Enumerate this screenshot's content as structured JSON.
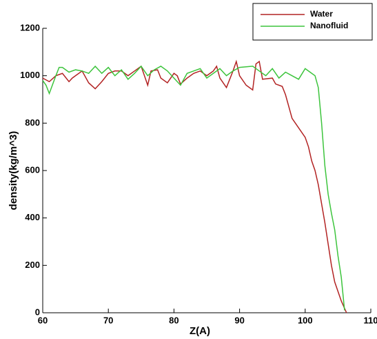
{
  "chart_data": {
    "type": "line",
    "xlabel": "Z(A)",
    "ylabel": "density(kg/m^3)",
    "xlim": [
      60,
      110
    ],
    "xticks": [
      60,
      70,
      80,
      90,
      100,
      110
    ],
    "ylim": [
      0,
      1200
    ],
    "yticks": [
      0,
      200,
      400,
      600,
      800,
      1000,
      1200
    ],
    "legend": "upper right",
    "series": [
      {
        "name": "Water",
        "color": "#b22222",
        "x": [
          60,
          61,
          62,
          63,
          64,
          64.5,
          65,
          66,
          67,
          68,
          69,
          70,
          71,
          72,
          73,
          74,
          75,
          76,
          76.5,
          77.5,
          78,
          79,
          80,
          80.5,
          81,
          82,
          83,
          84,
          85,
          86,
          86.5,
          87,
          88,
          89,
          89.5,
          90,
          91,
          92,
          92.5,
          93,
          93.5,
          95,
          95.5,
          96.5,
          97,
          98,
          99,
          100,
          100.5,
          101,
          101.5,
          102,
          103,
          104,
          104.5,
          105.5,
          106.3
        ],
        "values": [
          990,
          975,
          1000,
          1010,
          975,
          990,
          1000,
          1020,
          970,
          945,
          975,
          1010,
          1020,
          1020,
          1000,
          1020,
          1040,
          960,
          1020,
          1025,
          990,
          970,
          1010,
          1000,
          965,
          990,
          1010,
          1020,
          1000,
          1020,
          1040,
          990,
          950,
          1020,
          1060,
          1000,
          960,
          940,
          1050,
          1060,
          985,
          990,
          965,
          955,
          920,
          820,
          780,
          740,
          700,
          640,
          600,
          540,
          380,
          200,
          130,
          50,
          0
        ]
      },
      {
        "name": "Nanofluid",
        "color": "#3cc43c",
        "x": [
          60,
          60.5,
          61,
          62,
          62.5,
          63,
          64,
          65,
          66,
          67,
          68,
          69,
          70,
          71,
          72,
          73,
          74,
          75,
          76,
          77,
          78,
          79,
          80,
          81,
          82,
          83,
          84,
          85,
          86,
          87,
          88,
          89,
          90,
          92,
          93,
          94,
          95,
          96,
          97,
          98,
          99,
          100,
          101,
          101.5,
          102,
          102.5,
          103,
          103.5,
          104,
          104.5,
          105,
          105.5,
          106
        ],
        "values": [
          980,
          960,
          925,
          1000,
          1035,
          1035,
          1015,
          1025,
          1020,
          1010,
          1040,
          1010,
          1035,
          1000,
          1025,
          985,
          1010,
          1040,
          1000,
          1025,
          1040,
          1020,
          990,
          960,
          1010,
          1020,
          1030,
          990,
          1010,
          1030,
          1000,
          1020,
          1035,
          1040,
          1020,
          1000,
          1030,
          990,
          1015,
          1000,
          985,
          1030,
          1010,
          1000,
          950,
          800,
          620,
          500,
          420,
          350,
          240,
          150,
          10
        ]
      }
    ]
  }
}
